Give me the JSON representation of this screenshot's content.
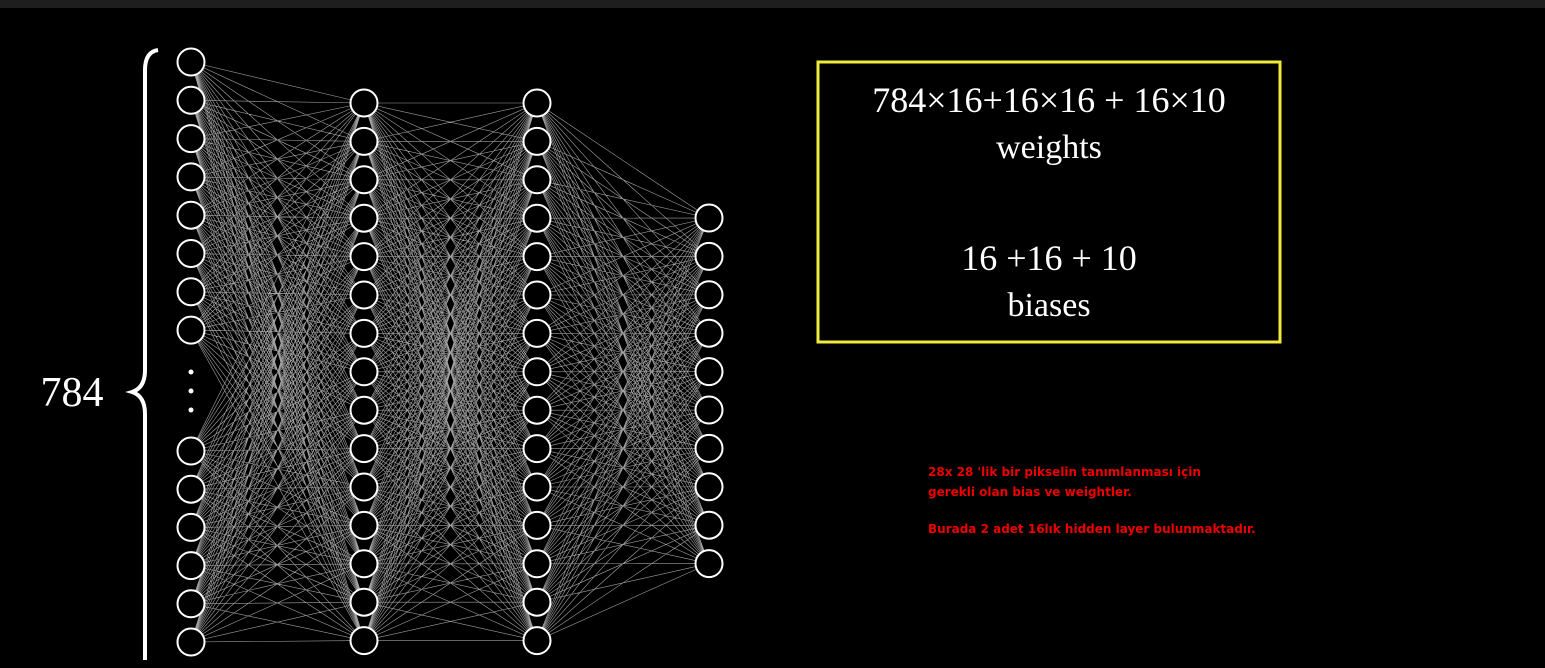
{
  "input_label": "784",
  "formula": {
    "weights_expr": "784×16+16×16 + 16×10",
    "weights_label": "weights",
    "biases_expr": "16 +16 + 10",
    "biases_label": "biases"
  },
  "notes": [
    "28x 28 'lik bir pikselin tanımlanması için",
    "gerekli olan bias ve weightler.",
    "Burada 2 adet 16lık hidden layer bulunmaktadır."
  ]
}
